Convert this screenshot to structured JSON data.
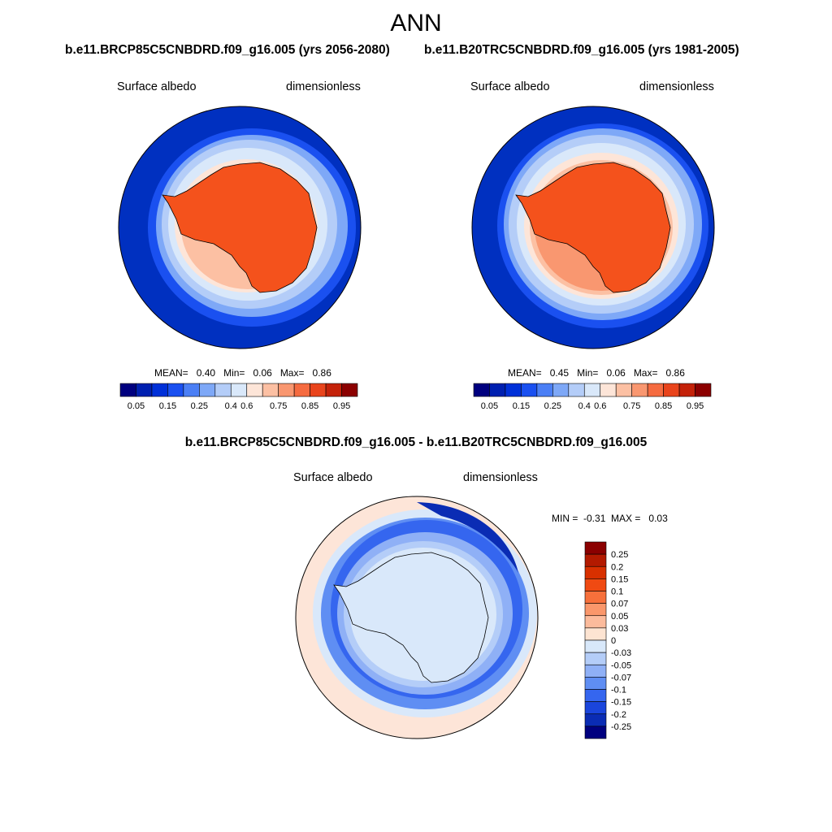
{
  "main_title": "ANN",
  "panel_left": {
    "title": "b.e11.BRCP85C5CNBDRD.f09_g16.005 (yrs 2056-2080)",
    "variable": "Surface albedo",
    "units": "dimensionless",
    "stats": {
      "mean_label": "MEAN=",
      "mean": "0.40",
      "min_label": "Min=",
      "min": "0.06",
      "max_label": "Max=",
      "max": "0.86"
    }
  },
  "panel_right": {
    "title": "b.e11.B20TRC5CNBDRD.f09_g16.005 (yrs 1981-2005)",
    "variable": "Surface albedo",
    "units": "dimensionless",
    "stats": {
      "mean_label": "MEAN=",
      "mean": "0.45",
      "min_label": "Min=",
      "min": "0.06",
      "max_label": "Max=",
      "max": "0.86"
    }
  },
  "panel_diff": {
    "title": "b.e11.BRCP85C5CNBDRD.f09_g16.005 - b.e11.B20TRC5CNBDRD.f09_g16.005",
    "variable": "Surface albedo",
    "units": "dimensionless",
    "minmax": {
      "min_label": "MIN =",
      "min": "-0.31",
      "max_label": "MAX =",
      "max": "0.03"
    }
  },
  "colorbar_abs": {
    "colors": [
      "#00007f",
      "#0020b0",
      "#0030d8",
      "#1a50f0",
      "#4b7ff5",
      "#7ea8f7",
      "#b4cdf8",
      "#d9e8fa",
      "#fde5d8",
      "#fcc0a3",
      "#f99770",
      "#f56b40",
      "#e9441c",
      "#c42209",
      "#8b0000"
    ],
    "tick_labels": [
      "0.05",
      "0.15",
      "0.25",
      "0.4",
      "0.6",
      "0.75",
      "0.85",
      "0.95"
    ]
  },
  "colorbar_diff": {
    "colors": [
      "#8b0000",
      "#b31a00",
      "#d83000",
      "#f04a12",
      "#f7703b",
      "#fa976b",
      "#fcbb9c",
      "#fde4d2",
      "#d8e8fa",
      "#b4cdf8",
      "#8fb0f6",
      "#5f8ef3",
      "#3566ef",
      "#1a45dc",
      "#0a2cb4",
      "#00007f"
    ],
    "tick_labels": [
      "0.25",
      "0.2",
      "0.15",
      "0.1",
      "0.07",
      "0.05",
      "0.03",
      "0",
      "-0.03",
      "-0.05",
      "-0.07",
      "-0.1",
      "-0.15",
      "-0.2",
      "-0.25"
    ]
  }
}
